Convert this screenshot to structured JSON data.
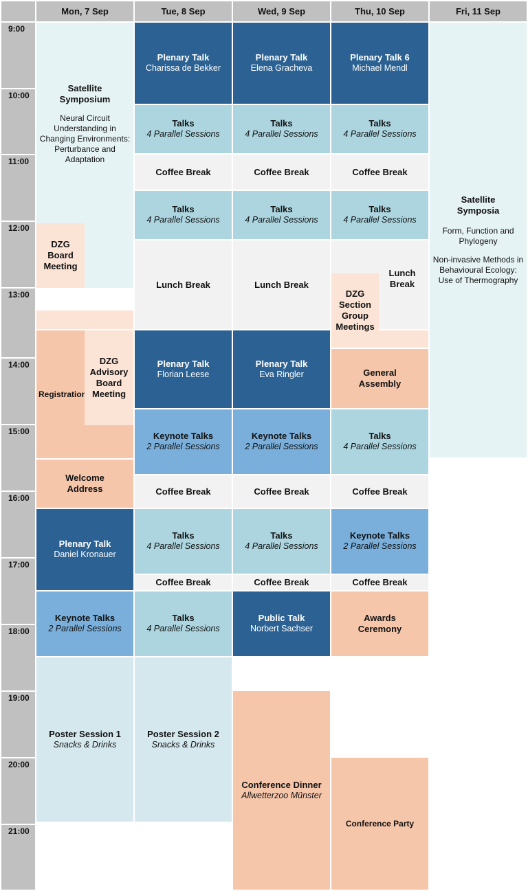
{
  "days": [
    "Mon, 7 Sep",
    "Tue, 8 Sep",
    "Wed, 9 Sep",
    "Thu, 10 Sep",
    "Fri, 11 Sep"
  ],
  "times": [
    "9:00",
    "10:00",
    "11:00",
    "12:00",
    "13:00",
    "14:00",
    "15:00",
    "16:00",
    "17:00",
    "18:00",
    "19:00",
    "20:00",
    "21:00"
  ],
  "events": {
    "mon_satellite": {
      "title": "Satellite Symposium",
      "desc": "Neural Circuit Understanding in Changing Environments: Perturbance and Adaptation"
    },
    "mon_board": {
      "title": "DZG Board Meeting"
    },
    "mon_registration": {
      "title": "Registration"
    },
    "mon_advisory": {
      "title": "DZG Advisory Board Meeting"
    },
    "mon_welcome": {
      "title": "Welcome Address"
    },
    "mon_plenary": {
      "title": "Plenary Talk",
      "sub": "Daniel Kronauer"
    },
    "mon_keynote": {
      "title": "Keynote Talks",
      "sub": "2 Parallel Sessions"
    },
    "mon_poster": {
      "title": "Poster Session 1",
      "sub": "Snacks & Drinks"
    },
    "tue_plenary1": {
      "title": "Plenary Talk",
      "sub": "Charissa de Bekker"
    },
    "tue_talks1": {
      "title": "Talks",
      "sub": "4 Parallel Sessions"
    },
    "tue_coffee1": {
      "title": "Coffee Break"
    },
    "tue_talks2": {
      "title": "Talks",
      "sub": "4 Parallel Sessions"
    },
    "tue_lunch": {
      "title": "Lunch Break"
    },
    "tue_plenary2": {
      "title": "Plenary Talk",
      "sub": "Florian Leese"
    },
    "tue_keynote": {
      "title": "Keynote Talks",
      "sub": "2 Parallel Sessions"
    },
    "tue_coffee2": {
      "title": "Coffee Break"
    },
    "tue_talks3": {
      "title": "Talks",
      "sub": "4 Parallel Sessions"
    },
    "tue_coffee3": {
      "title": "Coffee Break"
    },
    "tue_talks4": {
      "title": "Talks",
      "sub": "4 Parallel Sessions"
    },
    "tue_poster": {
      "title": "Poster Session 2",
      "sub": "Snacks & Drinks"
    },
    "wed_plenary1": {
      "title": "Plenary Talk",
      "sub": "Elena Gracheva"
    },
    "wed_talks1": {
      "title": "Talks",
      "sub": "4 Parallel Sessions"
    },
    "wed_coffee1": {
      "title": "Coffee Break"
    },
    "wed_talks2": {
      "title": "Talks",
      "sub": "4 Parallel Sessions"
    },
    "wed_lunch": {
      "title": "Lunch Break"
    },
    "wed_plenary2": {
      "title": "Plenary Talk",
      "sub": "Eva Ringler"
    },
    "wed_keynote": {
      "title": "Keynote Talks",
      "sub": "2 Parallel Sessions"
    },
    "wed_coffee2": {
      "title": "Coffee Break"
    },
    "wed_talks3": {
      "title": "Talks",
      "sub": "4 Parallel Sessions"
    },
    "wed_coffee3": {
      "title": "Coffee Break"
    },
    "wed_public": {
      "title": "Public Talk",
      "sub": "Norbert Sachser"
    },
    "wed_dinner": {
      "title": "Conference Dinner",
      "sub": "Allwetterzoo Münster"
    },
    "thu_plenary1": {
      "title": "Plenary Talk 6",
      "sub": "Michael Mendl"
    },
    "thu_talks1": {
      "title": "Talks",
      "sub": "4 Parallel Sessions"
    },
    "thu_coffee1": {
      "title": "Coffee Break"
    },
    "thu_talks2": {
      "title": "Talks",
      "sub": "4 Parallel Sessions"
    },
    "thu_lunch": {
      "title": "Lunch Break"
    },
    "thu_section": {
      "title": "DZG Section Group Meetings"
    },
    "thu_assembly": {
      "title": "General Assembly"
    },
    "thu_talks3": {
      "title": "Talks",
      "sub": "4 Parallel Sessions"
    },
    "thu_coffee2": {
      "title": "Coffee Break"
    },
    "thu_keynote": {
      "title": "Keynote Talks",
      "sub": "2 Parallel Sessions"
    },
    "thu_coffee3": {
      "title": "Coffee Break"
    },
    "thu_awards": {
      "title": "Awards Ceremony"
    },
    "thu_party": {
      "title": "Conference Party"
    },
    "fri_satellite": {
      "title": "Satellite Symposia",
      "desc1": "Form, Function and Phylogeny",
      "desc2": "Non-invasive Methods in Behavioural Ecology: Use of Thermography"
    }
  },
  "colors": {
    "header": "#c0c0c0",
    "plenary": "#2b6293",
    "keynote": "#7aafdb",
    "talks": "#acd5df",
    "poster": "#d4e8ee",
    "satellite": "#e6f3f5",
    "break": "#f2f2f2",
    "social": "#f6c6ab",
    "meeting": "#fbe3d6"
  }
}
